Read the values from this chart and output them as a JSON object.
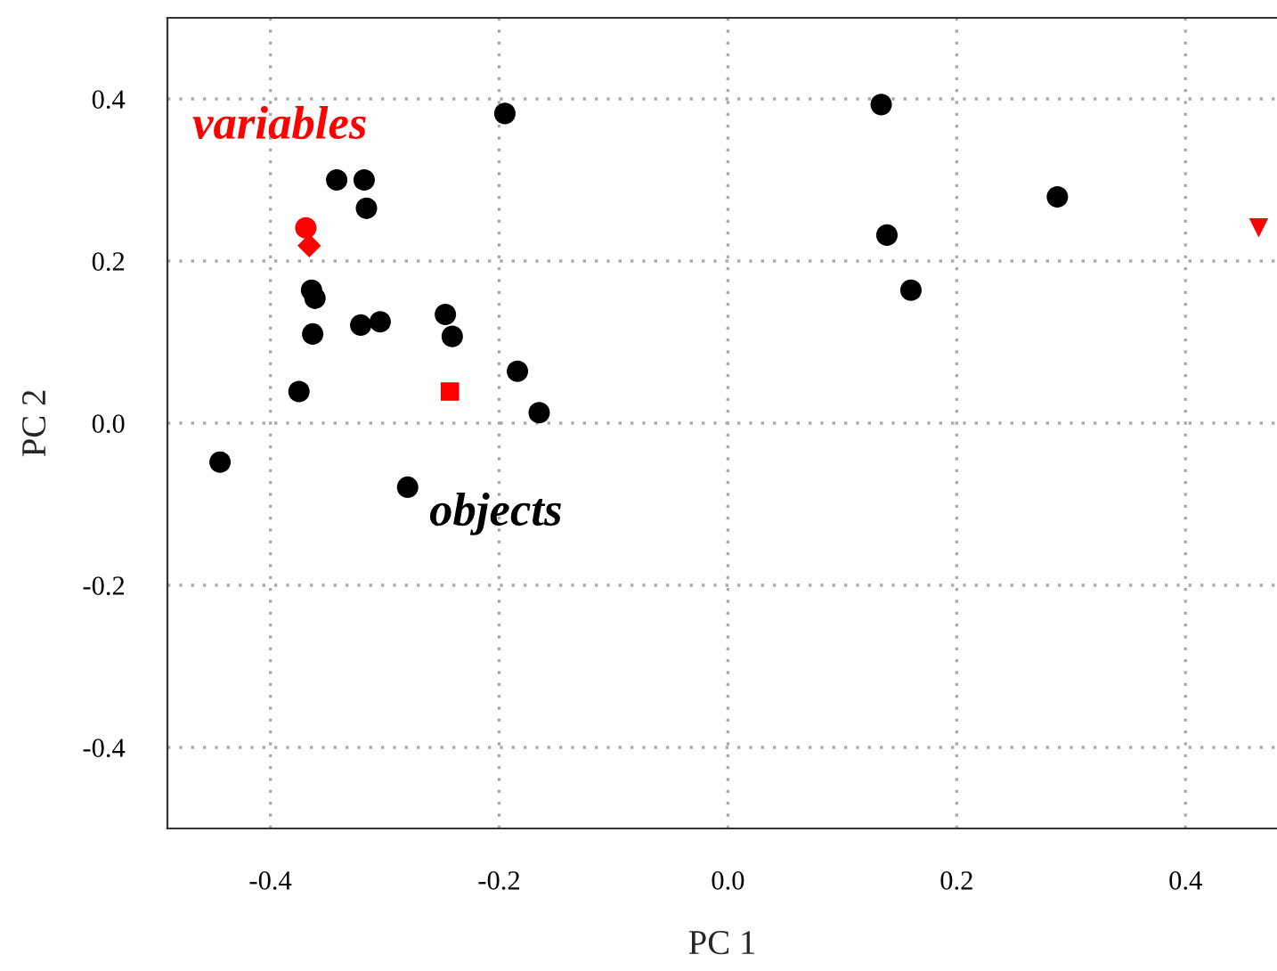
{
  "chart_data": {
    "type": "scatter",
    "xlabel": "PC 1",
    "ylabel": "PC 2",
    "xlim": [
      -0.49,
      0.48
    ],
    "ylim": [
      -0.5,
      0.5
    ],
    "xticks": [
      -0.4,
      -0.2,
      {
        "value": 0,
        "label": "0.0"
      },
      0.2,
      0.4
    ],
    "yticks": [
      -0.4,
      -0.2,
      {
        "value": 0,
        "label": "0.0"
      },
      0.2,
      0.4
    ],
    "grid": true,
    "annotations": [
      "variables",
      "objects"
    ],
    "series": [
      {
        "color": "#ff0000",
        "marker": "circle",
        "x": [
          -0.369
        ],
        "values": [
          0.241
        ]
      },
      {
        "color": "#000000",
        "marker": "circle",
        "x": [
          -0.444,
          -0.375,
          -0.364,
          -0.361,
          -0.363,
          -0.342,
          -0.318,
          -0.316,
          -0.321,
          -0.304,
          -0.247,
          -0.241,
          -0.195,
          -0.184,
          -0.165,
          -0.28,
          0.134,
          0.139,
          0.16,
          0.288
        ],
        "values": [
          -0.048,
          0.039,
          0.164,
          0.154,
          0.11,
          0.3,
          0.3,
          0.265,
          0.121,
          0.125,
          0.134,
          0.107,
          0.382,
          0.064,
          0.013,
          -0.079,
          0.393,
          0.232,
          0.164,
          0.279
        ]
      },
      {
        "color": "#ff0000",
        "marker": "diamond",
        "x": [
          -0.366
        ],
        "values": [
          0.219
        ]
      },
      {
        "color": "#ff0000",
        "marker": "square",
        "x": [
          -0.243
        ],
        "values": [
          0.039
        ]
      },
      {
        "color": "#ff0000",
        "marker": "triangle",
        "x": [
          0.464
        ],
        "values": [
          0.241
        ]
      }
    ]
  }
}
